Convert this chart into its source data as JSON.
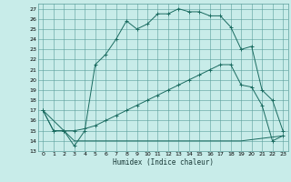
{
  "xlabel": "Humidex (Indice chaleur)",
  "bg_color": "#c8ece9",
  "grid_color": "#5a9e9a",
  "line_color": "#1a6b60",
  "xlim": [
    -0.5,
    23.5
  ],
  "ylim": [
    13,
    27.5
  ],
  "yticks": [
    13,
    14,
    15,
    16,
    17,
    18,
    19,
    20,
    21,
    22,
    23,
    24,
    25,
    26,
    27
  ],
  "xticks": [
    0,
    1,
    2,
    3,
    4,
    5,
    6,
    7,
    8,
    9,
    10,
    11,
    12,
    13,
    14,
    15,
    16,
    17,
    18,
    19,
    20,
    21,
    22,
    23
  ],
  "line1_x": [
    0,
    1,
    2,
    3,
    4,
    5,
    6,
    7,
    8,
    9,
    10,
    11,
    12,
    13,
    14,
    15,
    16,
    17,
    18,
    19,
    20,
    21,
    22,
    23
  ],
  "line1_y": [
    17,
    15,
    15,
    13.5,
    15,
    21.5,
    22.5,
    24.0,
    25.8,
    25.0,
    25.5,
    26.5,
    26.5,
    27.0,
    26.7,
    26.7,
    26.3,
    26.3,
    25.2,
    23.0,
    23.3,
    19.0,
    18.0,
    15.0
  ],
  "line2_x": [
    0,
    1,
    2,
    3,
    4,
    5,
    6,
    7,
    8,
    9,
    10,
    11,
    12,
    13,
    14,
    15,
    16,
    17,
    18,
    19,
    20,
    21,
    22,
    23
  ],
  "line2_y": [
    17,
    15,
    15,
    15,
    15.2,
    15.5,
    16.0,
    16.5,
    17.0,
    17.5,
    18.0,
    18.5,
    19.0,
    19.5,
    20.0,
    20.5,
    21.0,
    21.5,
    21.5,
    19.5,
    19.3,
    17.5,
    14.0,
    14.5
  ],
  "line3_x": [
    0,
    3,
    14,
    19,
    23
  ],
  "line3_y": [
    17,
    14,
    14,
    14,
    14.5
  ]
}
